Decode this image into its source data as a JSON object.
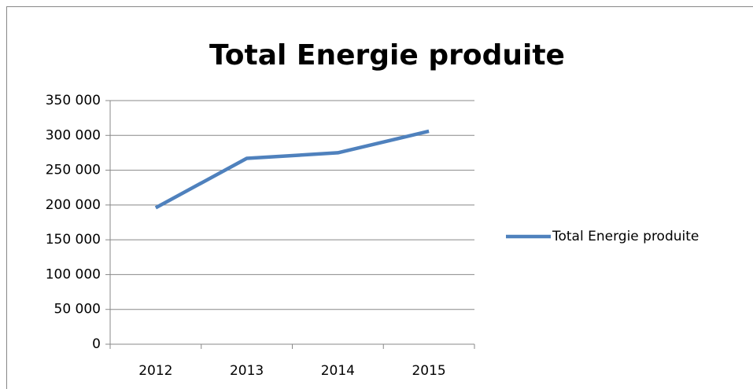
{
  "chart_data": {
    "type": "line",
    "title": "Total Energie produite",
    "categories": [
      "2012",
      "2013",
      "2014",
      "2015"
    ],
    "series": [
      {
        "name": "Total Energie produite",
        "color": "#4f81bd",
        "values": [
          196000,
          267000,
          275000,
          306000
        ]
      }
    ],
    "ylim": [
      0,
      350000
    ],
    "yticks": [
      0,
      {
        "value": 50000,
        "label": "50 000"
      },
      {
        "value": 100000,
        "label": "100 000"
      },
      {
        "value": 150000,
        "label": "150 000"
      },
      {
        "value": 200000,
        "label": "200 000"
      },
      {
        "value": 250000,
        "label": "250 000"
      },
      {
        "value": 300000,
        "label": "300 000"
      },
      {
        "value": 350000,
        "label": "350 000"
      }
    ],
    "grid": true,
    "legend": "right"
  }
}
